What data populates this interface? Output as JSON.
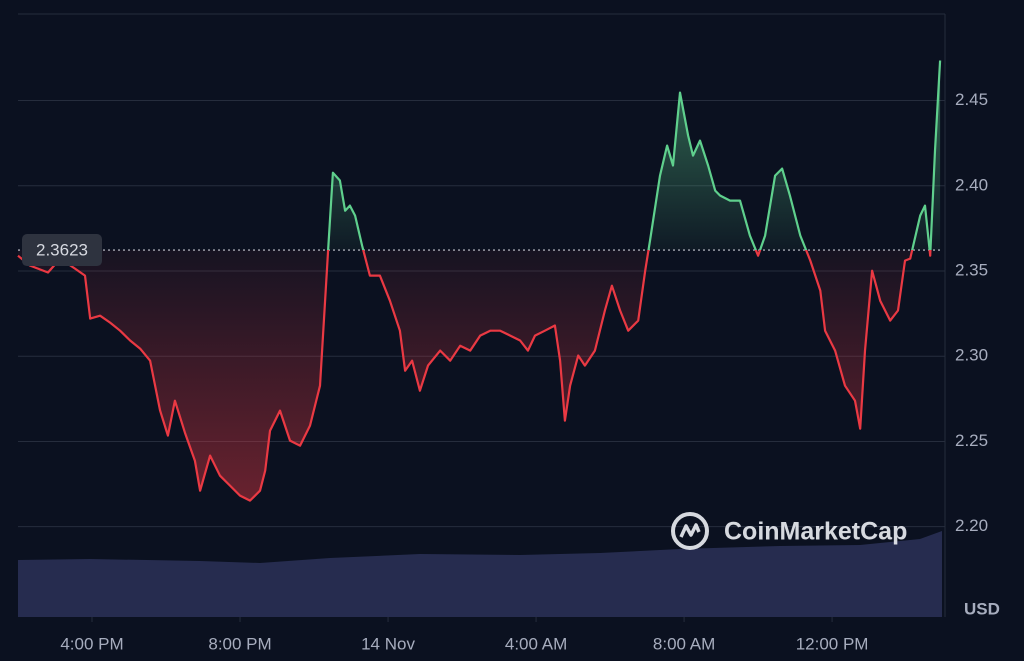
{
  "chart_data": {
    "type": "line",
    "x": [
      14.0,
      14.32,
      14.81,
      15.14,
      15.54,
      15.81,
      15.95,
      16.22,
      16.49,
      16.76,
      17.03,
      17.3,
      17.57,
      17.84,
      18.05,
      18.24,
      18.51,
      18.78,
      18.92,
      19.19,
      19.46,
      19.73,
      20.0,
      20.27,
      20.54,
      20.68,
      20.81,
      21.08,
      21.35,
      21.62,
      21.89,
      22.16,
      22.38,
      22.51,
      22.7,
      22.84,
      22.97,
      23.11,
      23.3,
      23.51,
      23.78,
      24.05,
      24.32,
      24.46,
      24.65,
      24.86,
      25.08,
      25.41,
      25.68,
      25.95,
      26.22,
      26.49,
      26.76,
      27.03,
      27.3,
      27.57,
      27.78,
      27.97,
      28.24,
      28.51,
      28.65,
      28.78,
      28.92,
      29.14,
      29.32,
      29.59,
      29.86,
      30.05,
      30.27,
      30.49,
      30.76,
      30.95,
      31.08,
      31.35,
      31.54,
      31.7,
      31.89,
      32.11,
      32.24,
      32.43,
      32.65,
      32.84,
      32.97,
      33.24,
      33.51,
      33.78,
      34.0,
      34.19,
      34.46,
      34.65,
      34.86,
      35.14,
      35.41,
      35.68,
      35.81,
      36.08,
      36.35,
      36.62,
      36.76,
      36.89,
      37.08,
      37.3,
      37.57,
      37.78,
      37.97,
      38.11,
      38.38,
      38.51,
      38.65,
      38.78,
      38.92
    ],
    "values": [
      2.359,
      2.3532,
      2.3491,
      2.3573,
      2.3514,
      2.3473,
      2.3221,
      2.3238,
      2.3197,
      2.315,
      2.3092,
      2.3045,
      2.2974,
      2.2681,
      2.2534,
      2.2739,
      2.2552,
      2.2387,
      2.2211,
      2.2417,
      2.2299,
      2.2241,
      2.2182,
      2.2153,
      2.2211,
      2.2329,
      2.2563,
      2.2681,
      2.2505,
      2.2475,
      2.2593,
      2.2827,
      2.362,
      2.4077,
      2.4031,
      2.3854,
      2.3884,
      2.3825,
      2.3649,
      2.3473,
      2.3473,
      2.3326,
      2.315,
      2.2915,
      2.2974,
      2.2798,
      2.2945,
      2.3033,
      2.2974,
      2.3062,
      2.3033,
      2.3121,
      2.315,
      2.315,
      2.3121,
      2.3092,
      2.3033,
      2.3121,
      2.315,
      2.318,
      2.2974,
      2.2622,
      2.2827,
      2.3004,
      2.2945,
      2.3033,
      2.3268,
      2.3414,
      2.3268,
      2.315,
      2.3209,
      2.3502,
      2.3678,
      2.406,
      2.4236,
      2.4119,
      2.4547,
      2.4295,
      2.4177,
      2.4265,
      2.4119,
      2.3972,
      2.3943,
      2.3913,
      2.3913,
      2.3708,
      2.359,
      2.3708,
      2.406,
      2.4101,
      2.3943,
      2.3708,
      2.3561,
      2.3385,
      2.315,
      2.3033,
      2.2827,
      2.2739,
      2.2575,
      2.3033,
      2.3502,
      2.3326,
      2.3209,
      2.3268,
      2.3561,
      2.3573,
      2.3825,
      2.3884,
      2.359,
      2.4207,
      2.4735
    ],
    "baseline": 2.3623,
    "up_color": "#5fd08d",
    "down_color": "#ea3943",
    "xlim": [
      14,
      38.97
    ],
    "xticks": [
      {
        "value": 16,
        "label": "4:00 PM"
      },
      {
        "value": 20,
        "label": "8:00 PM"
      },
      {
        "value": 24,
        "label": "14 Nov"
      },
      {
        "value": 28,
        "label": "4:00 AM"
      },
      {
        "value": 32,
        "label": "8:00 AM"
      },
      {
        "value": 36,
        "label": "12:00 PM"
      }
    ],
    "ylim": [
      2.147,
      2.509
    ],
    "yticks": [
      {
        "value": 2.2,
        "label": "2.20"
      },
      2.25,
      {
        "value": 2.3,
        "label": "2.30"
      },
      2.35,
      {
        "value": 2.4,
        "label": "2.40"
      },
      2.45
    ],
    "grid": true,
    "currency": "USD",
    "watermark": "CoinMarketCap"
  }
}
